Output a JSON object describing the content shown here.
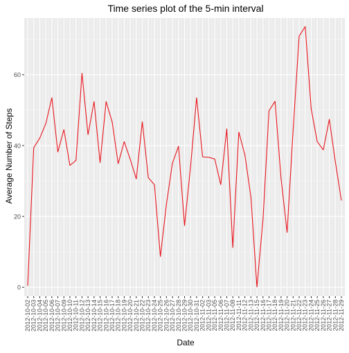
{
  "chart_data": {
    "type": "line",
    "title": "Time series plot of the 5-min interval",
    "xlabel": "Date",
    "ylabel": "Average Number of Steps",
    "ylim": [
      -2.5,
      76
    ],
    "yticks": [
      0,
      20,
      40,
      60
    ],
    "grid": true,
    "legend": "none",
    "line_color": "#e8141c",
    "panel_background": "#ebebeb",
    "series": [
      {
        "x": [
          "2012-10-02",
          "2012-10-03",
          "2012-10-04",
          "2012-10-05",
          "2012-10-06",
          "2012-10-07",
          "2012-10-09",
          "2012-10-10",
          "2012-10-11",
          "2012-10-12",
          "2012-10-13",
          "2012-10-14",
          "2012-10-15",
          "2012-10-16",
          "2012-10-17",
          "2012-10-18",
          "2012-10-19",
          "2012-10-20",
          "2012-10-21",
          "2012-10-22",
          "2012-10-23",
          "2012-10-24",
          "2012-10-25",
          "2012-10-26",
          "2012-10-27",
          "2012-10-28",
          "2012-10-29",
          "2012-10-30",
          "2012-10-31",
          "2012-11-02",
          "2012-11-03",
          "2012-11-05",
          "2012-11-06",
          "2012-11-07",
          "2012-11-08",
          "2012-11-11",
          "2012-11-12",
          "2012-11-13",
          "2012-11-15",
          "2012-11-16",
          "2012-11-17",
          "2012-11-18",
          "2012-11-19",
          "2012-11-20",
          "2012-11-21",
          "2012-11-22",
          "2012-11-23",
          "2012-11-24",
          "2012-11-25",
          "2012-11-26",
          "2012-11-27",
          "2012-11-28",
          "2012-11-29"
        ],
        "values": [
          0.4,
          39.4,
          42.1,
          46.2,
          53.5,
          38.2,
          44.5,
          34.4,
          35.8,
          60.4,
          43.1,
          52.4,
          35.2,
          52.4,
          46.7,
          34.9,
          41.1,
          36.1,
          30.6,
          46.7,
          30.9,
          29.0,
          8.7,
          23.5,
          35.1,
          39.8,
          17.4,
          34.1,
          53.5,
          36.8,
          36.7,
          36.2,
          29.0,
          44.7,
          11.2,
          43.8,
          37.4,
          25.5,
          0.1,
          19.0,
          49.8,
          52.5,
          30.7,
          15.5,
          44.4,
          70.9,
          73.6,
          50.3,
          41.1,
          38.8,
          47.4,
          35.4,
          24.5
        ]
      }
    ]
  }
}
